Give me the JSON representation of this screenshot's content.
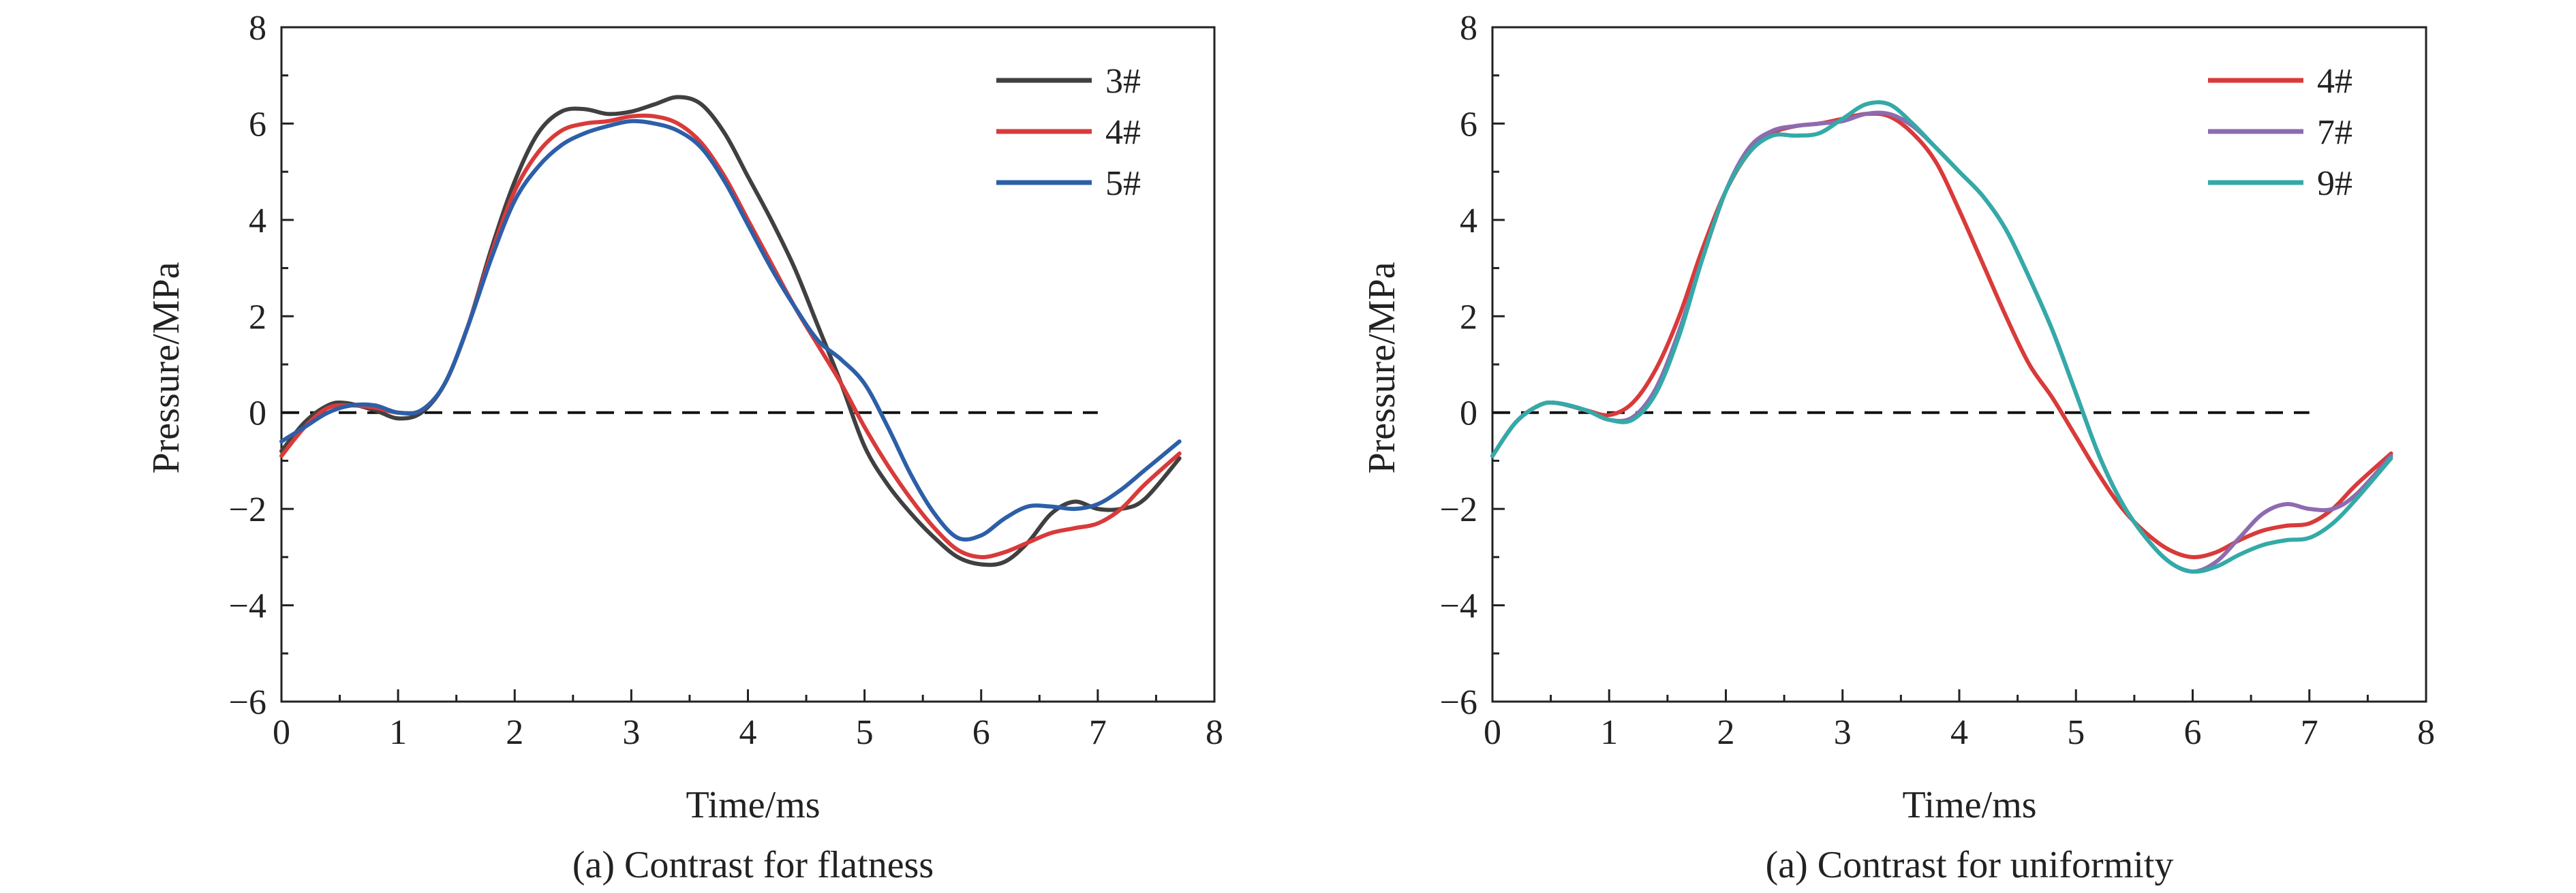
{
  "chart_data": [
    {
      "type": "line",
      "title": "",
      "caption": "(a) Contrast for flatness",
      "xlabel": "Time/ms",
      "ylabel": "Pressure/MPa",
      "xlim": [
        0,
        8
      ],
      "ylim": [
        -6,
        8
      ],
      "xticks": [
        0,
        1,
        2,
        3,
        4,
        5,
        6,
        7,
        8
      ],
      "yticks": [
        -6,
        -4,
        -2,
        0,
        2,
        4,
        6,
        8
      ],
      "x_tick_labels": [
        "0",
        "1",
        "2",
        "3",
        "4",
        "5",
        "6",
        "7",
        "8"
      ],
      "y_tick_labels": [
        "−6",
        "−4",
        "−2",
        "0",
        "2",
        "4",
        "6",
        "8"
      ],
      "grid": false,
      "legend_position": "top-right",
      "reference_line": {
        "y": 0,
        "x_range": [
          0,
          7
        ],
        "style": "dashed"
      },
      "series": [
        {
          "name": "3#",
          "color": "#404040",
          "points": [
            [
              0,
              -0.8
            ],
            [
              0.2,
              -0.2
            ],
            [
              0.4,
              0.15
            ],
            [
              0.55,
              0.2
            ],
            [
              0.8,
              0.05
            ],
            [
              1.0,
              -0.12
            ],
            [
              1.2,
              0.0
            ],
            [
              1.4,
              0.6
            ],
            [
              1.6,
              1.8
            ],
            [
              1.8,
              3.4
            ],
            [
              2.0,
              4.8
            ],
            [
              2.2,
              5.8
            ],
            [
              2.4,
              6.25
            ],
            [
              2.6,
              6.3
            ],
            [
              2.8,
              6.2
            ],
            [
              3.0,
              6.25
            ],
            [
              3.2,
              6.4
            ],
            [
              3.4,
              6.55
            ],
            [
              3.6,
              6.4
            ],
            [
              3.8,
              5.8
            ],
            [
              4.0,
              4.9
            ],
            [
              4.2,
              4.0
            ],
            [
              4.4,
              3.0
            ],
            [
              4.6,
              1.8
            ],
            [
              4.8,
              0.6
            ],
            [
              5.0,
              -0.7
            ],
            [
              5.2,
              -1.5
            ],
            [
              5.4,
              -2.1
            ],
            [
              5.6,
              -2.6
            ],
            [
              5.8,
              -3.0
            ],
            [
              6.0,
              -3.15
            ],
            [
              6.2,
              -3.1
            ],
            [
              6.4,
              -2.7
            ],
            [
              6.6,
              -2.1
            ],
            [
              6.8,
              -1.85
            ],
            [
              7.0,
              -2.0
            ],
            [
              7.2,
              -2.0
            ],
            [
              7.4,
              -1.8
            ],
            [
              7.7,
              -0.95
            ]
          ]
        },
        {
          "name": "4#",
          "color": "#d93a3a",
          "points": [
            [
              0,
              -0.9
            ],
            [
              0.2,
              -0.3
            ],
            [
              0.4,
              0.1
            ],
            [
              0.6,
              0.15
            ],
            [
              0.8,
              0.1
            ],
            [
              1.0,
              0.0
            ],
            [
              1.2,
              0.05
            ],
            [
              1.4,
              0.6
            ],
            [
              1.6,
              1.8
            ],
            [
              1.8,
              3.3
            ],
            [
              2.0,
              4.6
            ],
            [
              2.2,
              5.4
            ],
            [
              2.4,
              5.85
            ],
            [
              2.6,
              6.0
            ],
            [
              2.8,
              6.05
            ],
            [
              3.0,
              6.15
            ],
            [
              3.2,
              6.15
            ],
            [
              3.4,
              6.0
            ],
            [
              3.6,
              5.6
            ],
            [
              3.8,
              4.9
            ],
            [
              4.0,
              4.0
            ],
            [
              4.2,
              3.1
            ],
            [
              4.4,
              2.2
            ],
            [
              4.6,
              1.4
            ],
            [
              4.8,
              0.6
            ],
            [
              5.0,
              -0.3
            ],
            [
              5.2,
              -1.1
            ],
            [
              5.4,
              -1.8
            ],
            [
              5.6,
              -2.4
            ],
            [
              5.8,
              -2.85
            ],
            [
              6.0,
              -3.0
            ],
            [
              6.2,
              -2.9
            ],
            [
              6.4,
              -2.7
            ],
            [
              6.6,
              -2.5
            ],
            [
              6.8,
              -2.4
            ],
            [
              7.0,
              -2.3
            ],
            [
              7.2,
              -2.0
            ],
            [
              7.4,
              -1.5
            ],
            [
              7.7,
              -0.85
            ]
          ]
        },
        {
          "name": "5#",
          "color": "#2d5fa8",
          "points": [
            [
              0,
              -0.6
            ],
            [
              0.2,
              -0.3
            ],
            [
              0.4,
              0.0
            ],
            [
              0.6,
              0.15
            ],
            [
              0.8,
              0.15
            ],
            [
              1.0,
              0.0
            ],
            [
              1.2,
              0.05
            ],
            [
              1.4,
              0.6
            ],
            [
              1.6,
              1.8
            ],
            [
              1.8,
              3.2
            ],
            [
              2.0,
              4.4
            ],
            [
              2.2,
              5.1
            ],
            [
              2.4,
              5.55
            ],
            [
              2.6,
              5.8
            ],
            [
              2.8,
              5.95
            ],
            [
              3.0,
              6.05
            ],
            [
              3.2,
              6.0
            ],
            [
              3.4,
              5.85
            ],
            [
              3.6,
              5.5
            ],
            [
              3.8,
              4.8
            ],
            [
              4.0,
              3.9
            ],
            [
              4.2,
              3.0
            ],
            [
              4.4,
              2.2
            ],
            [
              4.6,
              1.5
            ],
            [
              4.8,
              1.1
            ],
            [
              5.0,
              0.6
            ],
            [
              5.2,
              -0.3
            ],
            [
              5.4,
              -1.3
            ],
            [
              5.6,
              -2.1
            ],
            [
              5.8,
              -2.6
            ],
            [
              6.0,
              -2.55
            ],
            [
              6.2,
              -2.2
            ],
            [
              6.4,
              -1.95
            ],
            [
              6.6,
              -1.95
            ],
            [
              6.8,
              -2.0
            ],
            [
              7.0,
              -1.9
            ],
            [
              7.2,
              -1.6
            ],
            [
              7.4,
              -1.2
            ],
            [
              7.7,
              -0.6
            ]
          ]
        }
      ]
    },
    {
      "type": "line",
      "title": "",
      "caption": "(a) Contrast for uniformity",
      "xlabel": "Time/ms",
      "ylabel": "Pressure/MPa",
      "xlim": [
        0,
        8
      ],
      "ylim": [
        -6,
        8
      ],
      "xticks": [
        0,
        1,
        2,
        3,
        4,
        5,
        6,
        7,
        8
      ],
      "yticks": [
        -6,
        -4,
        -2,
        0,
        2,
        4,
        6,
        8
      ],
      "x_tick_labels": [
        "0",
        "1",
        "2",
        "3",
        "4",
        "5",
        "6",
        "7",
        "8"
      ],
      "y_tick_labels": [
        "−6",
        "−4",
        "−2",
        "0",
        "2",
        "4",
        "6",
        "8"
      ],
      "grid": false,
      "legend_position": "top-right",
      "reference_line": {
        "y": 0,
        "x_range": [
          0,
          7
        ],
        "style": "dashed"
      },
      "series": [
        {
          "name": "4#",
          "color": "#d93a3a",
          "points": [
            [
              0,
              -0.9
            ],
            [
              0.2,
              -0.2
            ],
            [
              0.4,
              0.15
            ],
            [
              0.55,
              0.2
            ],
            [
              0.8,
              0.05
            ],
            [
              1.0,
              -0.05
            ],
            [
              1.2,
              0.2
            ],
            [
              1.4,
              0.9
            ],
            [
              1.6,
              2.0
            ],
            [
              1.8,
              3.4
            ],
            [
              2.0,
              4.6
            ],
            [
              2.2,
              5.4
            ],
            [
              2.4,
              5.8
            ],
            [
              2.6,
              5.95
            ],
            [
              2.8,
              6.0
            ],
            [
              3.0,
              6.1
            ],
            [
              3.2,
              6.2
            ],
            [
              3.4,
              6.15
            ],
            [
              3.6,
              5.8
            ],
            [
              3.8,
              5.2
            ],
            [
              4.0,
              4.2
            ],
            [
              4.2,
              3.1
            ],
            [
              4.4,
              2.0
            ],
            [
              4.6,
              1.0
            ],
            [
              4.8,
              0.3
            ],
            [
              5.0,
              -0.5
            ],
            [
              5.2,
              -1.3
            ],
            [
              5.4,
              -2.0
            ],
            [
              5.6,
              -2.5
            ],
            [
              5.8,
              -2.85
            ],
            [
              6.0,
              -3.0
            ],
            [
              6.2,
              -2.9
            ],
            [
              6.4,
              -2.65
            ],
            [
              6.6,
              -2.45
            ],
            [
              6.8,
              -2.35
            ],
            [
              7.0,
              -2.3
            ],
            [
              7.2,
              -2.0
            ],
            [
              7.4,
              -1.5
            ],
            [
              7.7,
              -0.85
            ]
          ]
        },
        {
          "name": "7#",
          "color": "#8e6bb0",
          "points": [
            [
              0,
              -0.9
            ],
            [
              0.2,
              -0.2
            ],
            [
              0.4,
              0.15
            ],
            [
              0.55,
              0.2
            ],
            [
              0.8,
              0.05
            ],
            [
              1.0,
              -0.15
            ],
            [
              1.2,
              -0.1
            ],
            [
              1.4,
              0.5
            ],
            [
              1.6,
              1.7
            ],
            [
              1.8,
              3.2
            ],
            [
              2.0,
              4.6
            ],
            [
              2.2,
              5.5
            ],
            [
              2.4,
              5.85
            ],
            [
              2.6,
              5.95
            ],
            [
              2.8,
              6.0
            ],
            [
              3.0,
              6.05
            ],
            [
              3.2,
              6.2
            ],
            [
              3.4,
              6.2
            ],
            [
              3.6,
              5.95
            ],
            [
              3.8,
              5.5
            ],
            [
              4.0,
              5.0
            ],
            [
              4.2,
              4.5
            ],
            [
              4.4,
              3.8
            ],
            [
              4.6,
              2.8
            ],
            [
              4.8,
              1.7
            ],
            [
              5.0,
              0.4
            ],
            [
              5.2,
              -0.9
            ],
            [
              5.4,
              -1.9
            ],
            [
              5.6,
              -2.6
            ],
            [
              5.8,
              -3.1
            ],
            [
              6.0,
              -3.3
            ],
            [
              6.2,
              -3.1
            ],
            [
              6.4,
              -2.6
            ],
            [
              6.6,
              -2.1
            ],
            [
              6.8,
              -1.9
            ],
            [
              7.0,
              -2.0
            ],
            [
              7.2,
              -2.0
            ],
            [
              7.4,
              -1.7
            ],
            [
              7.7,
              -0.9
            ]
          ]
        },
        {
          "name": "9#",
          "color": "#33aaa8",
          "points": [
            [
              0,
              -0.9
            ],
            [
              0.2,
              -0.2
            ],
            [
              0.4,
              0.15
            ],
            [
              0.55,
              0.2
            ],
            [
              0.8,
              0.05
            ],
            [
              1.0,
              -0.15
            ],
            [
              1.2,
              -0.15
            ],
            [
              1.4,
              0.4
            ],
            [
              1.6,
              1.6
            ],
            [
              1.8,
              3.2
            ],
            [
              2.0,
              4.6
            ],
            [
              2.2,
              5.4
            ],
            [
              2.4,
              5.75
            ],
            [
              2.6,
              5.75
            ],
            [
              2.8,
              5.8
            ],
            [
              3.0,
              6.1
            ],
            [
              3.2,
              6.4
            ],
            [
              3.4,
              6.4
            ],
            [
              3.6,
              6.0
            ],
            [
              3.8,
              5.5
            ],
            [
              4.0,
              5.0
            ],
            [
              4.2,
              4.5
            ],
            [
              4.4,
              3.8
            ],
            [
              4.6,
              2.8
            ],
            [
              4.8,
              1.7
            ],
            [
              5.0,
              0.4
            ],
            [
              5.2,
              -0.9
            ],
            [
              5.4,
              -1.9
            ],
            [
              5.6,
              -2.6
            ],
            [
              5.8,
              -3.1
            ],
            [
              6.0,
              -3.3
            ],
            [
              6.2,
              -3.2
            ],
            [
              6.4,
              -2.95
            ],
            [
              6.6,
              -2.75
            ],
            [
              6.8,
              -2.65
            ],
            [
              7.0,
              -2.6
            ],
            [
              7.2,
              -2.3
            ],
            [
              7.4,
              -1.8
            ],
            [
              7.7,
              -0.95
            ]
          ]
        }
      ]
    }
  ]
}
